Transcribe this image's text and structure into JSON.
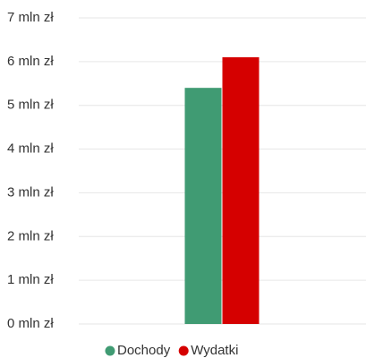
{
  "chart_data": {
    "type": "bar",
    "categories": [
      null
    ],
    "series": [
      {
        "name": "Dochody",
        "color": "#409b73",
        "values": [
          5.4
        ]
      },
      {
        "name": "Wydatki",
        "color": "#d50000",
        "values": [
          6.1
        ]
      }
    ],
    "ylim": [
      0,
      7
    ],
    "yticks": [
      {
        "value": 0,
        "label": "0 mln zł"
      },
      {
        "value": 1,
        "label": "1 mln zł"
      },
      {
        "value": 2,
        "label": "2 mln zł"
      },
      {
        "value": 3,
        "label": "3 mln zł"
      },
      {
        "value": 4,
        "label": "4 mln zł"
      },
      {
        "value": 5,
        "label": "5 mln zł"
      },
      {
        "value": 6,
        "label": "6 mln zł"
      },
      {
        "value": 7,
        "label": "7 mln zł"
      }
    ],
    "grid": true,
    "legend": "bottom"
  }
}
